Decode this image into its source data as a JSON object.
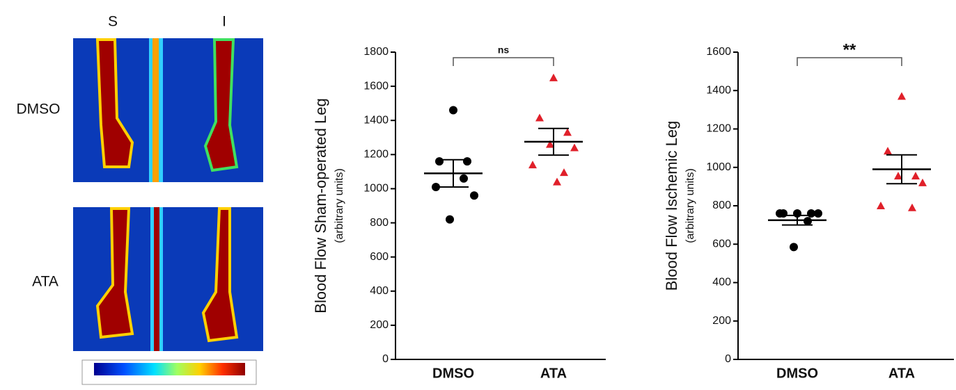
{
  "image_panel": {
    "columns": [
      "S",
      "I"
    ],
    "rows": [
      "DMSO",
      "ATA"
    ]
  },
  "chart_data": [
    {
      "type": "dot",
      "y_label": "Blood Flow Sham-operated Leg",
      "y_sublabel": "(arbitrary units)",
      "annotation": "ns",
      "series": [
        {
          "name": "DMSO",
          "color": "#000000",
          "marker": "circle",
          "values": [
            1460,
            1160,
            1160,
            1060,
            1010,
            960,
            820
          ],
          "mean": 1090,
          "sem": 80
        },
        {
          "name": "ATA",
          "color": "#e0202a",
          "marker": "triangle",
          "values": [
            1650,
            1415,
            1330,
            1260,
            1240,
            1140,
            1095,
            1040
          ],
          "mean": 1275,
          "sem": 78
        }
      ],
      "ylim": [
        0,
        1800
      ],
      "yticks": [
        0,
        200,
        400,
        600,
        800,
        1000,
        1200,
        1400,
        1600,
        1800
      ]
    },
    {
      "type": "dot",
      "y_label": "Blood Flow Ischemic Leg",
      "y_sublabel": "(arbitrary units)",
      "annotation": "**",
      "series": [
        {
          "name": "DMSO",
          "color": "#000000",
          "marker": "circle",
          "values": [
            760,
            760,
            760,
            720,
            760,
            760,
            585
          ],
          "mean": 725,
          "sem": 25
        },
        {
          "name": "ATA",
          "color": "#e0202a",
          "marker": "triangle",
          "values": [
            1370,
            1085,
            955,
            955,
            920,
            800,
            790
          ],
          "mean": 990,
          "sem": 75
        }
      ],
      "ylim": [
        0,
        1600
      ],
      "yticks": [
        0,
        200,
        400,
        600,
        800,
        1000,
        1200,
        1400,
        1600
      ]
    }
  ]
}
